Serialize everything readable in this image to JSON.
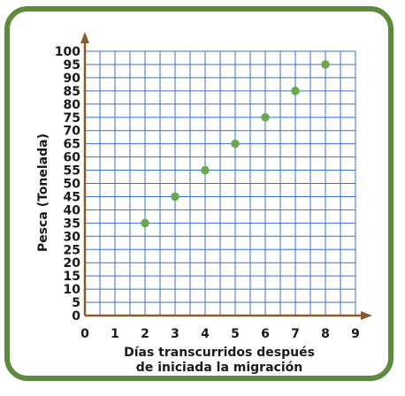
{
  "chart_data": {
    "type": "scatter",
    "title": "",
    "xlabel": "Días transcurridos después de iniciada la migración",
    "xlabel_lines": [
      "Días transcurridos después",
      "de iniciada la migración"
    ],
    "ylabel": "Pesca (Tonelada)",
    "xlim": [
      0,
      9
    ],
    "ylim": [
      0,
      100
    ],
    "x_ticks": [
      0,
      1,
      2,
      3,
      4,
      5,
      6,
      7,
      8,
      9
    ],
    "y_ticks": [
      0,
      5,
      10,
      15,
      20,
      25,
      30,
      35,
      40,
      45,
      50,
      55,
      60,
      65,
      70,
      75,
      80,
      85,
      90,
      95,
      100
    ],
    "grid": true,
    "x_minor_step": 0.5,
    "y_step": 5,
    "points": [
      {
        "x": 2,
        "y": 35
      },
      {
        "x": 3,
        "y": 45
      },
      {
        "x": 4,
        "y": 55
      },
      {
        "x": 5,
        "y": 65
      },
      {
        "x": 6,
        "y": 75
      },
      {
        "x": 7,
        "y": 85
      },
      {
        "x": 8,
        "y": 95
      }
    ],
    "colors": {
      "frame": "#5e8a3e",
      "grid": "#3b6fd6",
      "axis": "#8a5a2b",
      "point": "#6aa84f"
    }
  }
}
